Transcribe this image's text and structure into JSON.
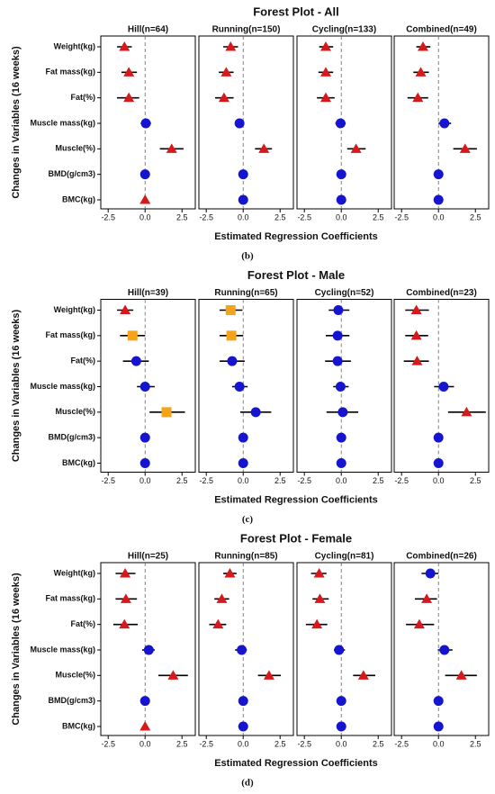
{
  "chart_data": [
    {
      "type": "forest",
      "title": "Forest Plot - All",
      "caption": "(b)",
      "ylabel": "Changes in Variables (16 weeks)",
      "xlabel": "Estimated Regression Coefficients",
      "categories": [
        "Weight(kg)",
        "Fat mass(kg)",
        "Fat(%)",
        "Muscle mass(kg)",
        "Muscle(%)",
        "BMD(g/cm3)",
        "BMC(kg)"
      ],
      "xlim": [
        -3,
        3.4
      ],
      "xticks": [
        -2.5,
        {
          "value": 0,
          "label": "0.0"
        },
        2.5
      ],
      "reference_line": 0,
      "marker_colors": {
        "triangle": "#d7191c",
        "circle": "#1515d0",
        "square": "#f5a31a"
      },
      "panels": [
        {
          "title": "Hill(n=64)",
          "values": [
            -1.4,
            -1.1,
            -1.1,
            0.05,
            1.8,
            0,
            0
          ],
          "ci_low": [
            -1.9,
            -1.6,
            -1.9,
            -0.3,
            1.0,
            0,
            0
          ],
          "ci_high": [
            -0.9,
            -0.55,
            -0.4,
            0.4,
            2.6,
            0,
            0
          ],
          "markers": [
            "triangle",
            "triangle",
            "triangle",
            "circle",
            "triangle",
            "circle",
            "triangle"
          ]
        },
        {
          "title": "Running(n=150)",
          "values": [
            -0.85,
            -1.15,
            -1.3,
            -0.25,
            1.4,
            0,
            0
          ],
          "ci_low": [
            -1.35,
            -1.65,
            -1.9,
            -0.55,
            0.8,
            0,
            0
          ],
          "ci_high": [
            -0.35,
            -0.65,
            -0.65,
            0.05,
            1.95,
            0,
            0
          ],
          "markers": [
            "triangle",
            "triangle",
            "triangle",
            "circle",
            "triangle",
            "circle",
            "circle"
          ]
        },
        {
          "title": "Cycling(n=133)",
          "values": [
            -1.05,
            -1.05,
            -1.05,
            -0.05,
            1.0,
            0,
            0
          ],
          "ci_low": [
            -1.5,
            -1.55,
            -1.65,
            -0.4,
            0.4,
            0,
            0
          ],
          "ci_high": [
            -0.55,
            -0.55,
            -0.45,
            0.3,
            1.65,
            0,
            0
          ],
          "markers": [
            "triangle",
            "triangle",
            "triangle",
            "circle",
            "triangle",
            "circle",
            "circle"
          ]
        },
        {
          "title": "Combined(n=49)",
          "values": [
            -1.05,
            -1.2,
            -1.4,
            0.4,
            1.8,
            0,
            0
          ],
          "ci_low": [
            -1.5,
            -1.7,
            -2.1,
            0,
            1.0,
            0,
            0
          ],
          "ci_high": [
            -0.55,
            -0.65,
            -0.7,
            0.85,
            2.6,
            0,
            0
          ],
          "markers": [
            "triangle",
            "triangle",
            "triangle",
            "circle",
            "triangle",
            "circle",
            "circle"
          ]
        }
      ]
    },
    {
      "type": "forest",
      "title": "Forest Plot - Male",
      "caption": "(c)",
      "ylabel": "Changes in Variables (16 weeks)",
      "xlabel": "Estimated Regression Coefficients",
      "categories": [
        "Weight(kg)",
        "Fat mass(kg)",
        "Fat(%)",
        "Muscle mass(kg)",
        "Muscle(%)",
        "BMD(g/cm3)",
        "BMC(kg)"
      ],
      "xlim": [
        -3,
        3.4
      ],
      "xticks": [
        -2.5,
        {
          "value": 0,
          "label": "0.0"
        },
        2.5
      ],
      "reference_line": 0,
      "marker_colors": {
        "triangle": "#d7191c",
        "circle": "#1515d0",
        "square": "#f5a31a"
      },
      "panels": [
        {
          "title": "Hill(n=39)",
          "values": [
            -1.35,
            -0.85,
            -0.6,
            0,
            1.45,
            0,
            0
          ],
          "ci_low": [
            -1.9,
            -1.7,
            -1.5,
            -0.55,
            0.3,
            0,
            0
          ],
          "ci_high": [
            -0.8,
            0,
            0.25,
            0.65,
            2.7,
            0,
            0
          ],
          "markers": [
            "triangle",
            "square",
            "circle",
            "circle",
            "square",
            "circle",
            "circle"
          ]
        },
        {
          "title": "Running(n=65)",
          "values": [
            -0.85,
            -0.8,
            -0.75,
            -0.25,
            0.85,
            0,
            0
          ],
          "ci_low": [
            -1.6,
            -1.6,
            -1.6,
            -0.75,
            -0.2,
            0,
            0
          ],
          "ci_high": [
            -0.05,
            0,
            0.1,
            0.3,
            1.9,
            0,
            0
          ],
          "markers": [
            "square",
            "square",
            "circle",
            "circle",
            "circle",
            "circle",
            "circle"
          ]
        },
        {
          "title": "Cycling(n=52)",
          "values": [
            -0.2,
            -0.25,
            -0.25,
            -0.05,
            0.1,
            0,
            0
          ],
          "ci_low": [
            -0.85,
            -1.05,
            -1.1,
            -0.55,
            -1.0,
            0,
            0
          ],
          "ci_high": [
            0.55,
            0.55,
            0.65,
            0.5,
            1.15,
            0,
            0
          ],
          "markers": [
            "circle",
            "circle",
            "circle",
            "circle",
            "circle",
            "circle",
            "circle"
          ]
        },
        {
          "title": "Combined(n=23)",
          "values": [
            -1.5,
            -1.5,
            -1.45,
            0.35,
            1.9,
            0,
            0
          ],
          "ci_low": [
            -2.25,
            -2.25,
            -2.35,
            -0.3,
            0.65,
            0,
            0
          ],
          "ci_high": [
            -0.65,
            -0.7,
            -0.65,
            1.05,
            3.2,
            0,
            0
          ],
          "markers": [
            "triangle",
            "triangle",
            "triangle",
            "circle",
            "triangle",
            "circle",
            "circle"
          ]
        }
      ]
    },
    {
      "type": "forest",
      "title": "Forest Plot - Female",
      "caption": "(d)",
      "ylabel": "Changes in Variables (16 weeks)",
      "xlabel": "Estimated Regression Coefficients",
      "categories": [
        "Weight(kg)",
        "Fat mass(kg)",
        "Fat(%)",
        "Muscle mass(kg)",
        "Muscle(%)",
        "BMD(g/cm3)",
        "BMC(kg)"
      ],
      "xlim": [
        -3,
        3.4
      ],
      "xticks": [
        -2.5,
        {
          "value": 0,
          "label": "0.0"
        },
        2.5
      ],
      "reference_line": 0,
      "marker_colors": {
        "triangle": "#d7191c",
        "circle": "#1515d0",
        "square": "#f5a31a"
      },
      "panels": [
        {
          "title": "Hill(n=25)",
          "values": [
            -1.35,
            -1.3,
            -1.4,
            0.25,
            1.9,
            0,
            0
          ],
          "ci_low": [
            -2.0,
            -2.0,
            -2.15,
            -0.2,
            0.9,
            0,
            0
          ],
          "ci_high": [
            -0.65,
            -0.55,
            -0.5,
            0.65,
            2.9,
            0,
            0
          ],
          "markers": [
            "triangle",
            "triangle",
            "triangle",
            "circle",
            "triangle",
            "circle",
            "triangle"
          ]
        },
        {
          "title": "Running(n=85)",
          "values": [
            -0.9,
            -1.45,
            -1.7,
            -0.1,
            1.75,
            0,
            0
          ],
          "ci_low": [
            -1.35,
            -1.95,
            -2.3,
            -0.55,
            1.0,
            0,
            0
          ],
          "ci_high": [
            -0.45,
            -0.95,
            -1.15,
            0.25,
            2.55,
            0,
            0
          ],
          "markers": [
            "triangle",
            "triangle",
            "triangle",
            "circle",
            "triangle",
            "circle",
            "circle"
          ]
        },
        {
          "title": "Cycling(n=81)",
          "values": [
            -1.5,
            -1.45,
            -1.65,
            -0.15,
            1.5,
            0,
            0
          ],
          "ci_low": [
            -2.05,
            -1.95,
            -2.4,
            -0.5,
            0.8,
            0,
            0
          ],
          "ci_high": [
            -1.0,
            -0.85,
            -0.95,
            0.25,
            2.3,
            0,
            0
          ],
          "markers": [
            "triangle",
            "triangle",
            "triangle",
            "circle",
            "triangle",
            "circle",
            "circle"
          ]
        },
        {
          "title": "Combined(n=26)",
          "values": [
            -0.55,
            -0.8,
            -1.3,
            0.4,
            1.55,
            0,
            0
          ],
          "ci_low": [
            -1.15,
            -1.6,
            -2.2,
            -0.05,
            0.45,
            0,
            0
          ],
          "ci_high": [
            0,
            -0.1,
            -0.3,
            0.95,
            2.6,
            0,
            0
          ],
          "markers": [
            "circle",
            "triangle",
            "triangle",
            "circle",
            "triangle",
            "circle",
            "circle"
          ]
        }
      ]
    }
  ]
}
